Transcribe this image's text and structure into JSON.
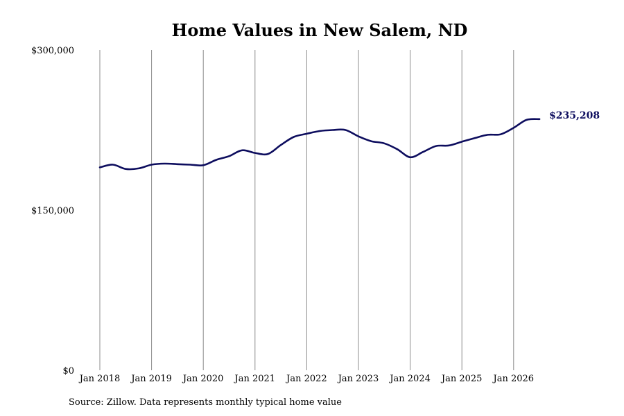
{
  "chart_data": {
    "type": "line",
    "title": "Home Values in New Salem, ND",
    "xlabel": "",
    "ylabel": "",
    "ylim": [
      0,
      300000
    ],
    "y_ticks": [
      {
        "value": 0,
        "label": "$0"
      },
      {
        "value": 150000,
        "label": "$150,000"
      },
      {
        "value": 300000,
        "label": "$300,000"
      }
    ],
    "x_ticks": [
      {
        "value": "2018-01",
        "label": "Jan 2018"
      },
      {
        "value": "2019-01",
        "label": "Jan 2019"
      },
      {
        "value": "2020-01",
        "label": "Jan 2020"
      },
      {
        "value": "2021-01",
        "label": "Jan 2021"
      },
      {
        "value": "2022-01",
        "label": "Jan 2022"
      },
      {
        "value": "2023-01",
        "label": "Jan 2023"
      },
      {
        "value": "2024-01",
        "label": "Jan 2024"
      },
      {
        "value": "2025-01",
        "label": "Jan 2025"
      },
      {
        "value": "2026-01",
        "label": "Jan 2026"
      }
    ],
    "grid": "vertical",
    "line_color": "#0d0d5e",
    "series": [
      {
        "x": [
          "2018-01",
          "2018-04",
          "2018-07",
          "2018-10",
          "2019-01",
          "2019-04",
          "2019-07",
          "2019-10",
          "2020-01",
          "2020-04",
          "2020-07",
          "2020-10",
          "2021-01",
          "2021-04",
          "2021-07",
          "2021-10",
          "2022-01",
          "2022-04",
          "2022-07",
          "2022-10",
          "2023-01",
          "2023-04",
          "2023-07",
          "2023-10",
          "2024-01",
          "2024-04",
          "2024-07",
          "2024-10",
          "2025-01",
          "2025-04",
          "2025-07",
          "2025-10",
          "2026-01",
          "2026-04",
          "2026-07"
        ],
        "values": [
          190000,
          192500,
          188500,
          189000,
          192500,
          193500,
          193000,
          192500,
          192000,
          197000,
          200500,
          206000,
          203500,
          202500,
          211000,
          218500,
          221500,
          224000,
          225000,
          225000,
          219000,
          214500,
          212500,
          207000,
          199500,
          204500,
          210000,
          210500,
          214000,
          217500,
          220500,
          221000,
          227000,
          234500,
          235208
        ]
      }
    ],
    "end_label": "$235,208",
    "source": "Source: Zillow. Data represents monthly typical home value"
  }
}
